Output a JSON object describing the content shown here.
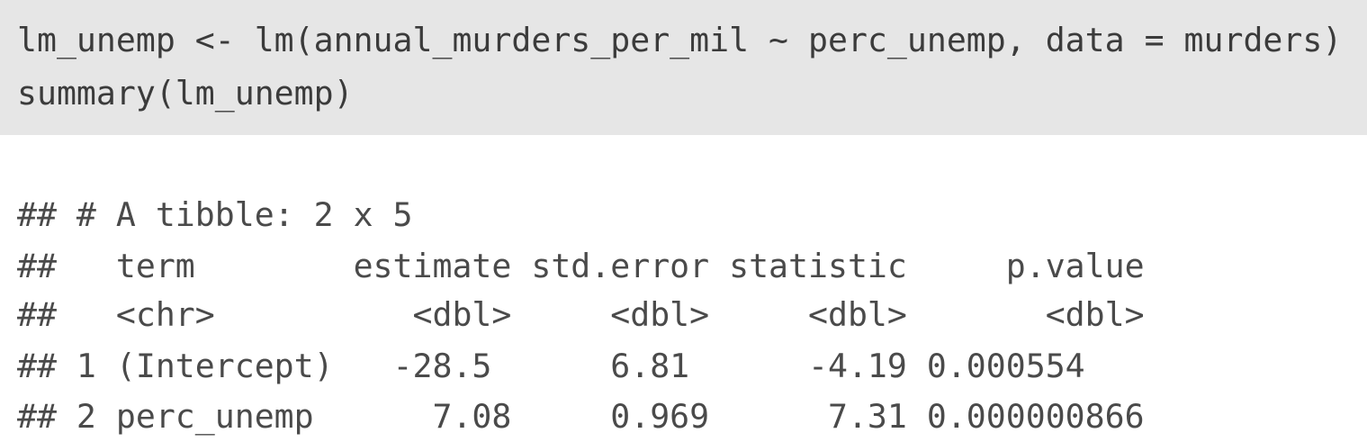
{
  "code": {
    "lines": [
      "lm_unemp <- lm(annual_murders_per_mil ~ perc_unemp, data = murders)",
      "summary(lm_unemp)"
    ]
  },
  "output": {
    "lines": [
      "## # A tibble: 2 x 5",
      "##   term        estimate std.error statistic     p.value",
      "##   <chr>          <dbl>     <dbl>     <dbl>       <dbl>",
      "## 1 (Intercept)   -28.5      6.81      -4.19 0.000554",
      "## 2 perc_unemp      7.08     0.969      7.31 0.000000866"
    ]
  },
  "tibble": {
    "columns": [
      "term",
      "estimate",
      "std.error",
      "statistic",
      "p.value"
    ],
    "types": [
      "<chr>",
      "<dbl>",
      "<dbl>",
      "<dbl>",
      "<dbl>"
    ],
    "rows": [
      [
        "(Intercept)",
        "-28.5",
        "6.81",
        "-4.19",
        "0.000554"
      ],
      [
        "perc_unemp",
        "7.08",
        "0.969",
        "7.31",
        "0.000000866"
      ]
    ]
  }
}
